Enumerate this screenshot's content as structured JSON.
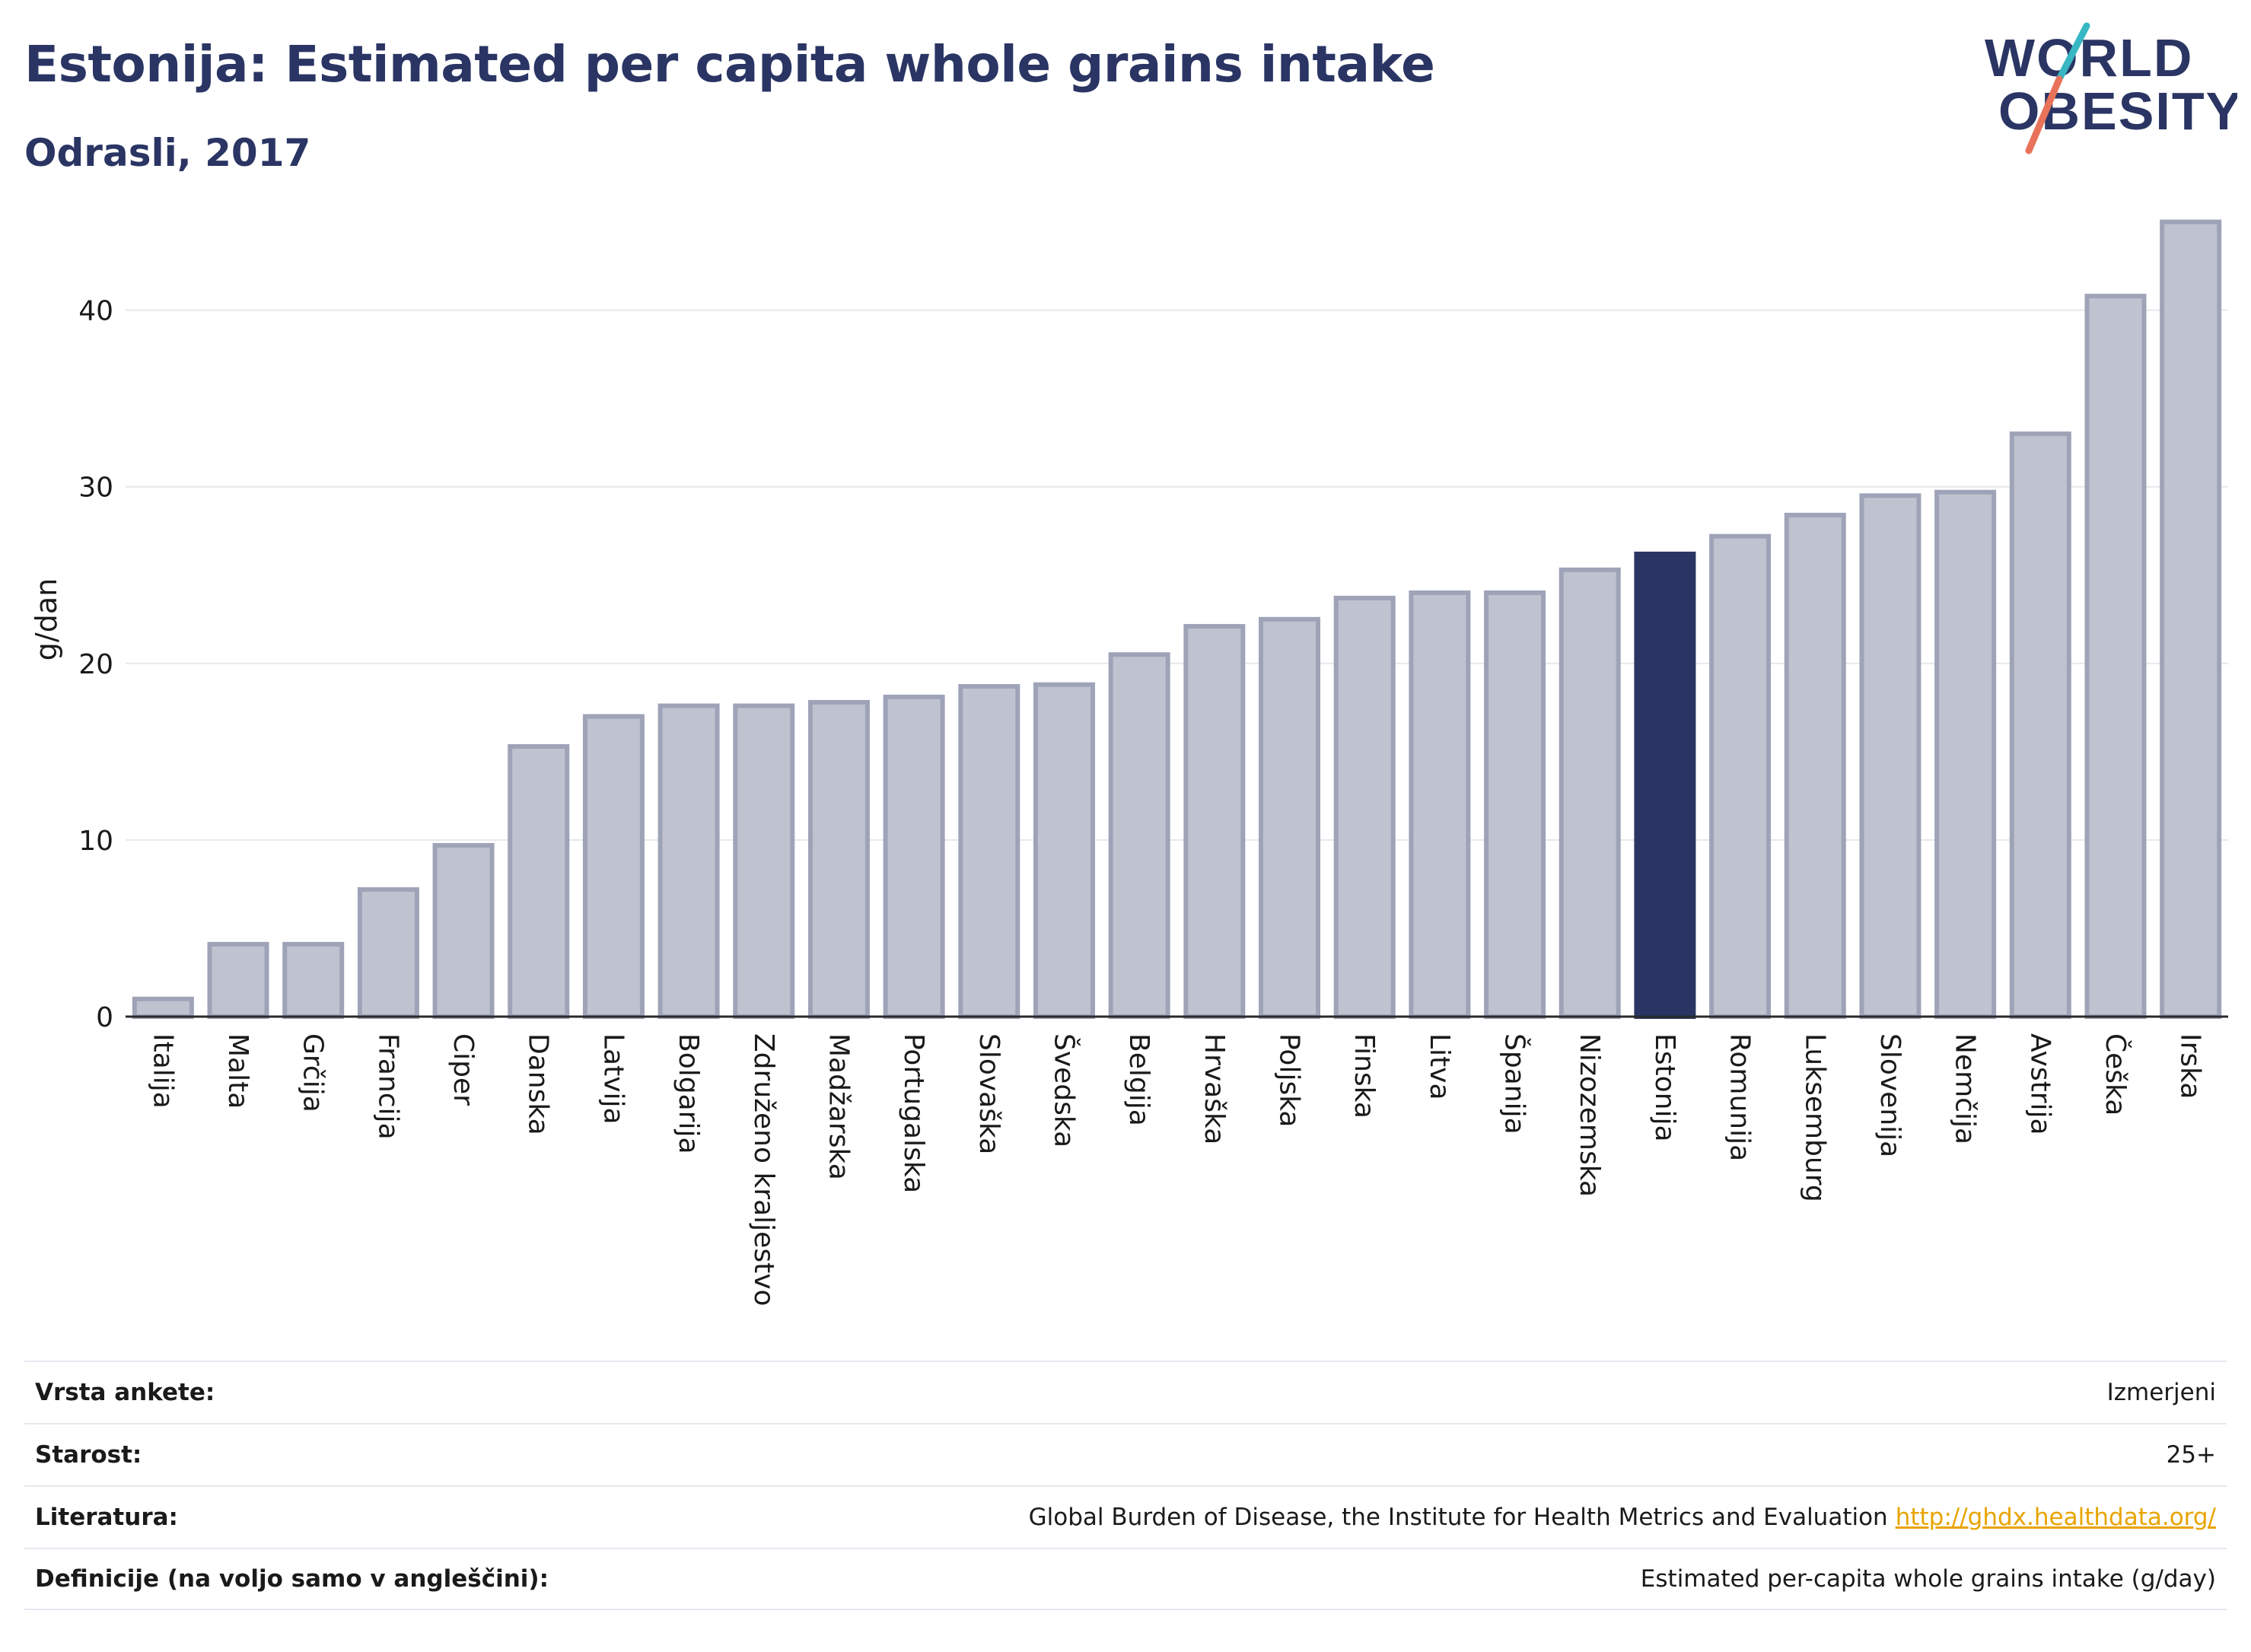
{
  "header": {
    "title": "Estonija: Estimated per capita whole grains intake",
    "subtitle": "Odrasli, 2017"
  },
  "logo": {
    "line1": "WORLD",
    "line2": "OBESITY",
    "accent_colors": [
      "#37b7c3",
      "#e8735a"
    ]
  },
  "colors": {
    "bar_default": "#bfc3d0",
    "bar_border": "#9ea3b8",
    "bar_highlight": "#2a3564",
    "text": "#2a3564"
  },
  "chart_data": {
    "type": "bar",
    "title": "Estonija: Estimated per capita whole grains intake",
    "subtitle": "Odrasli, 2017",
    "xlabel": "",
    "ylabel": "g/dan",
    "ylim": [
      0,
      45.5
    ],
    "yticks": [
      0,
      10,
      20,
      30,
      40
    ],
    "grid": true,
    "highlight": "Estonija",
    "categories": [
      "Italija",
      "Malta",
      "Grčija",
      "Francija",
      "Ciper",
      "Danska",
      "Latvija",
      "Bolgarija",
      "Združeno kraljestvo",
      "Madžarska",
      "Portugalska",
      "Slovaška",
      "Švedska",
      "Belgija",
      "Hrvaška",
      "Poljska",
      "Finska",
      "Litva",
      "Španija",
      "Nizozemska",
      "Estonija",
      "Romunija",
      "Luksemburg",
      "Slovenija",
      "Nemčija",
      "Avstrija",
      "Češka",
      "Irska"
    ],
    "values": [
      1.0,
      4.1,
      4.1,
      7.2,
      9.7,
      15.3,
      17.0,
      17.6,
      17.6,
      17.8,
      18.1,
      18.7,
      18.8,
      20.5,
      22.1,
      22.5,
      23.7,
      24.0,
      24.0,
      25.3,
      26.2,
      27.2,
      28.4,
      29.5,
      29.7,
      33.0,
      40.8,
      45.0
    ]
  },
  "meta": {
    "rows": [
      {
        "label": "Vrsta ankete:",
        "value": "Izmerjeni"
      },
      {
        "label": "Starost:",
        "value": "25+"
      },
      {
        "label": "Literatura:",
        "value": "Global Burden of Disease, the Institute for Health Metrics and Evaluation",
        "link": "http://ghdx.healthdata.org/"
      },
      {
        "label": "Definicije (na voljo samo v angleščini):",
        "value": "Estimated per-capita whole grains intake (g/day)"
      }
    ]
  }
}
